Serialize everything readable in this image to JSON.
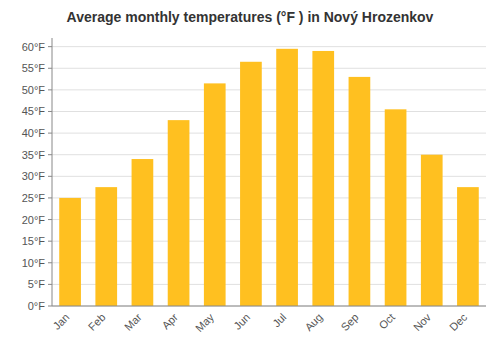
{
  "chart_data": {
    "type": "bar",
    "title": "Average monthly temperatures (°F ) in Nový Hrozenkov",
    "categories": [
      "Jan",
      "Feb",
      "Mar",
      "Apr",
      "May",
      "Jun",
      "Jul",
      "Aug",
      "Sep",
      "Oct",
      "Nov",
      "Dec"
    ],
    "values": [
      25,
      27.5,
      34,
      43,
      51.5,
      56.5,
      59.5,
      59,
      53,
      45.5,
      35,
      27.5
    ],
    "color": "#FFC020",
    "ylim": [
      0,
      62
    ],
    "yticks": [
      {
        "value": 0,
        "label": "0°F"
      },
      {
        "value": 5,
        "label": "5°F"
      },
      {
        "value": 10,
        "label": "10°F"
      },
      {
        "value": 15,
        "label": "15°F"
      },
      {
        "value": 20,
        "label": "20°F"
      },
      {
        "value": 25,
        "label": "25°F"
      },
      {
        "value": 30,
        "label": "30°F"
      },
      {
        "value": 35,
        "label": "35°F"
      },
      {
        "value": 40,
        "label": "40°F"
      },
      {
        "value": 45,
        "label": "45°F"
      },
      {
        "value": 50,
        "label": "50°F"
      },
      {
        "value": 55,
        "label": "55°F"
      },
      {
        "value": 60,
        "label": "60°F"
      }
    ],
    "grid": true
  }
}
